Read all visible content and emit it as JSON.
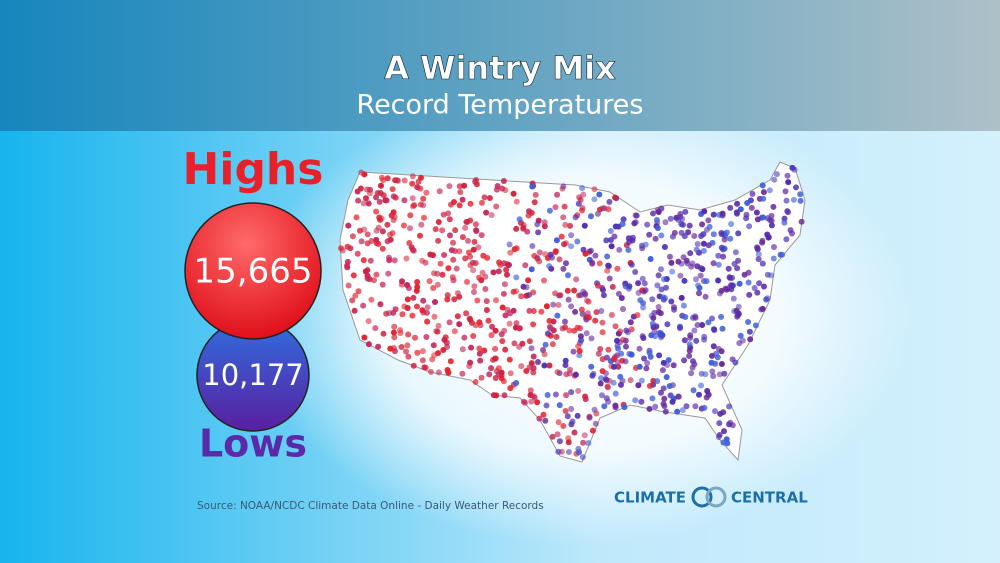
{
  "header": {
    "title": "A Wintry Mix",
    "subtitle": "Record Temperatures"
  },
  "highs": {
    "label": "Highs",
    "count": "15,665"
  },
  "lows": {
    "label": "Lows",
    "count": "10,177"
  },
  "source": "Source: NOAA/NCDC Climate Data Online - Daily Weather Records",
  "logo": {
    "left": "CLIMATE",
    "right": "CENTRAL"
  }
}
